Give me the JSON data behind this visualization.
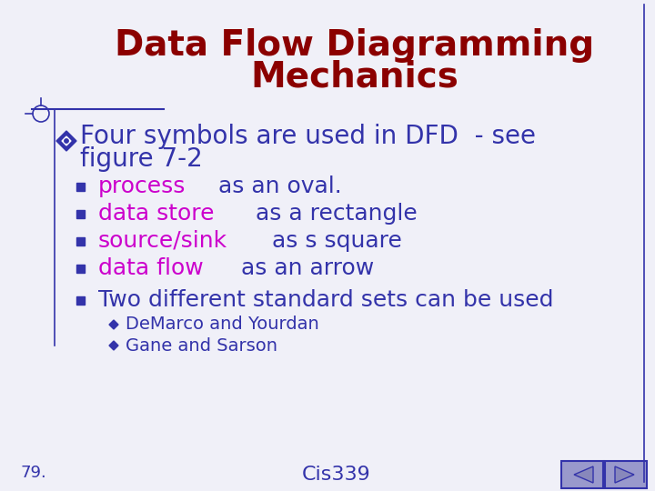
{
  "title_line1": "Data Flow Diagramming",
  "title_line2": "Mechanics",
  "title_color": "#8B0000",
  "title_fontsize": 28,
  "background_color": "#F0F0F8",
  "border_color": "#3333AA",
  "main_bullet_color": "#3333AA",
  "main_bullet_fontsize": 20,
  "bullet_marker_color": "#3333AA",
  "items": [
    {
      "colored_part": "process",
      "rest": " as an oval.",
      "color": "#CC00CC"
    },
    {
      "colored_part": "data store",
      "rest": " as a rectangle",
      "color": "#CC00CC"
    },
    {
      "colored_part": "source/sink",
      "rest": " as s square",
      "color": "#CC00CC"
    },
    {
      "colored_part": "data flow",
      "rest": " as an arrow",
      "color": "#CC00CC"
    },
    {
      "colored_part": "",
      "rest": "Two different standard sets can be used",
      "color": "#3333AA"
    }
  ],
  "sub_texts": [
    "DeMarco and Yourdan",
    "Gane and Sarson"
  ],
  "sub_item_color": "#3333AA",
  "item_fontsize": 18,
  "sub_item_fontsize": 14,
  "footer_left": "79.",
  "footer_center": "Cis339",
  "footer_color": "#3333AA",
  "footer_fontsize": 13,
  "nav_button_color": "#9999CC",
  "nav_border_color": "#3333AA"
}
